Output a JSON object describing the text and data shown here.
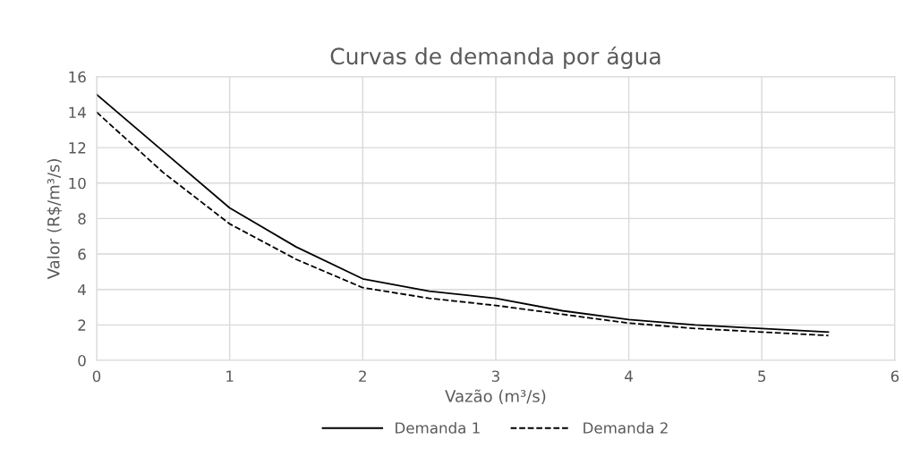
{
  "chart_data": {
    "type": "line",
    "title": "Curvas de demanda por água",
    "xlabel": "Vazão (m³/s)",
    "ylabel": "Valor (R$/m³/s)",
    "x": [
      0,
      0.5,
      1,
      1.5,
      2,
      2.5,
      3,
      3.5,
      4,
      4.5,
      5,
      5.5
    ],
    "series": [
      {
        "name": "Demanda 1",
        "color": "#000000",
        "line_style": "solid",
        "values": [
          15,
          11.8,
          8.6,
          6.4,
          4.6,
          3.9,
          3.5,
          2.8,
          2.3,
          2.0,
          1.8,
          1.6
        ]
      },
      {
        "name": "Demanda 2",
        "color": "#000000",
        "line_style": "dashed",
        "values": [
          14,
          10.6,
          7.7,
          5.7,
          4.1,
          3.5,
          3.1,
          2.6,
          2.1,
          1.8,
          1.6,
          1.4
        ]
      }
    ],
    "xlim": [
      0,
      6
    ],
    "xticks": [
      0,
      1,
      2,
      3,
      4,
      5,
      6
    ],
    "ylim": [
      0,
      16
    ],
    "yticks": [
      0,
      2,
      4,
      6,
      8,
      10,
      12,
      14,
      16
    ],
    "grid": true,
    "legend": "bottom",
    "marker": "none"
  }
}
